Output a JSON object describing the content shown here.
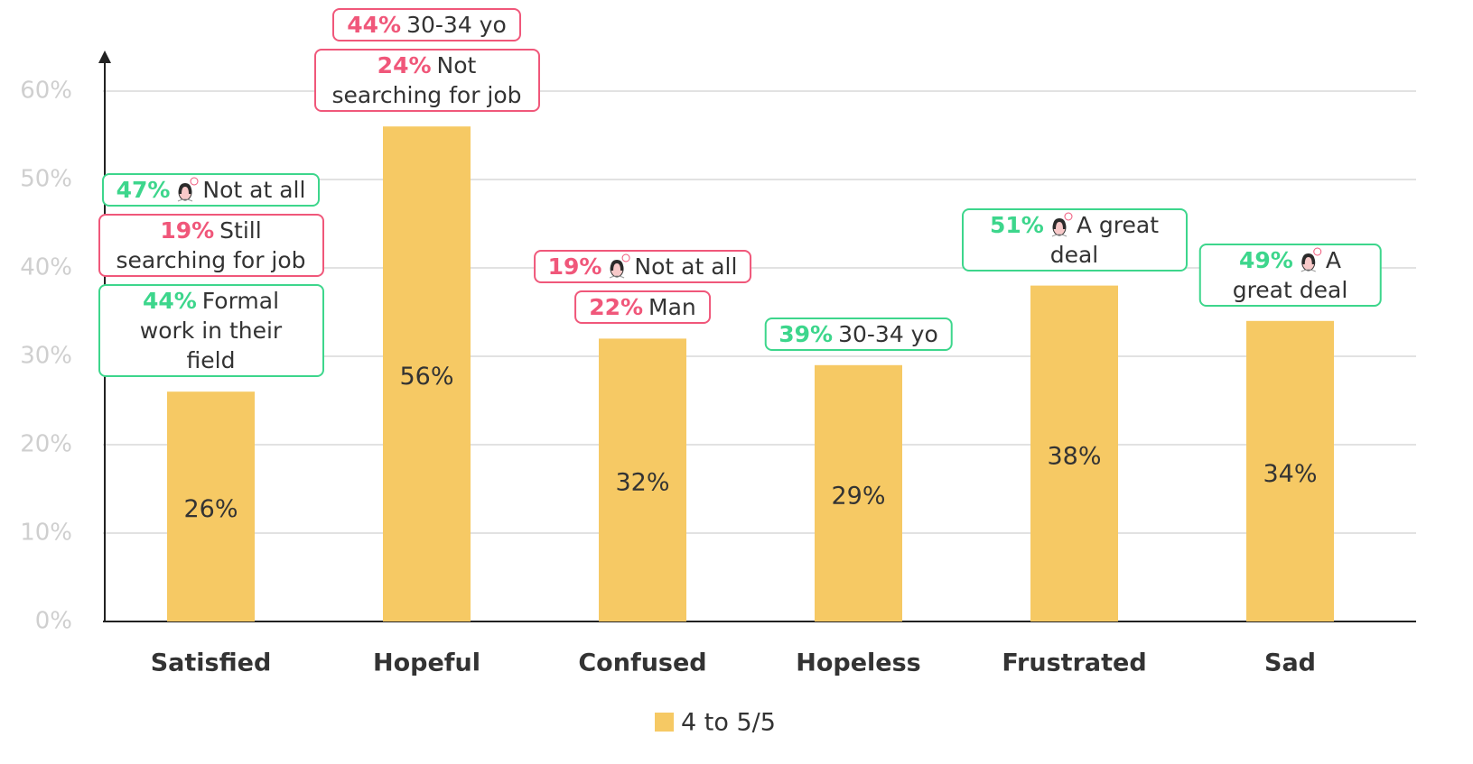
{
  "chart_data": {
    "type": "bar",
    "categories": [
      "Satisfied",
      "Hopeful",
      "Confused",
      "Hopeless",
      "Frustrated",
      "Sad"
    ],
    "series": [
      {
        "name": "4 to 5/5",
        "color": "#f6c964",
        "values": [
          26,
          56,
          32,
          29,
          38,
          34
        ],
        "value_labels": [
          "26%",
          "56%",
          "32%",
          "29%",
          "38%",
          "34%"
        ]
      }
    ],
    "ylim": [
      0,
      60
    ],
    "yticks": [
      {
        "value": 0,
        "label": "0%"
      },
      {
        "value": 10,
        "label": "10%"
      },
      {
        "value": 20,
        "label": "20%"
      },
      {
        "value": 30,
        "label": "30%"
      },
      {
        "value": 40,
        "label": "40%"
      },
      {
        "value": 50,
        "label": "50%"
      },
      {
        "value": 60,
        "label": "60%"
      }
    ],
    "grid": true,
    "legend": "bottom",
    "annotations": [
      [
        {
          "value": 47,
          "label": "47%",
          "text": "Not at all",
          "color": "#3dd68c",
          "icon": true
        },
        {
          "value": 19,
          "label": "19%",
          "text": "Still searching for job",
          "color": "#f0577a",
          "icon": false
        },
        {
          "value": 44,
          "label": "44%",
          "text": "Formal work in their field",
          "color": "#3dd68c",
          "icon": false
        }
      ],
      [
        {
          "value": 44,
          "label": "44%",
          "text": "30-34 yo",
          "color": "#f0577a",
          "icon": false
        },
        {
          "value": 24,
          "label": "24%",
          "text": "Not searching for job",
          "color": "#f0577a",
          "icon": false
        }
      ],
      [
        {
          "value": 19,
          "label": "19%",
          "text": "Not at all",
          "color": "#f0577a",
          "icon": true
        },
        {
          "value": 22,
          "label": "22%",
          "text": "Man",
          "color": "#f0577a",
          "icon": false
        }
      ],
      [
        {
          "value": 39,
          "label": "39%",
          "text": "30-34 yo",
          "color": "#3dd68c",
          "icon": false
        }
      ],
      [
        {
          "value": 51,
          "label": "51%",
          "text": "A great deal",
          "color": "#3dd68c",
          "icon": true
        }
      ],
      [
        {
          "value": 49,
          "label": "49%",
          "text": "A great deal",
          "color": "#3dd68c",
          "icon": true
        }
      ]
    ]
  }
}
